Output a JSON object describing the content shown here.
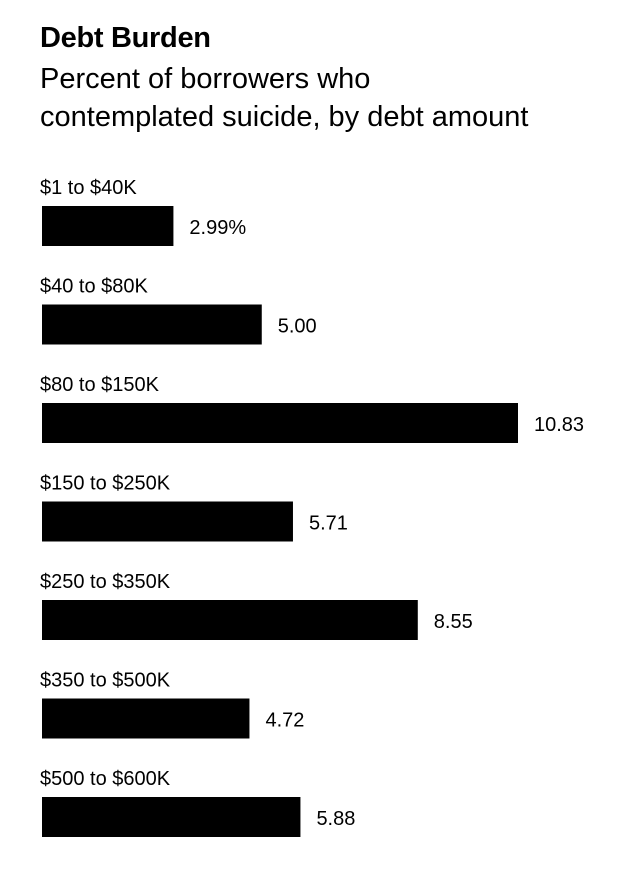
{
  "chart_data": {
    "type": "bar",
    "orientation": "horizontal",
    "title": "Debt Burden",
    "subtitle_lines": [
      "Percent of borrowers who",
      "contemplated suicide, by debt amount"
    ],
    "categories": [
      "$1 to $40K",
      "$40 to $80K",
      "$80 to $150K",
      "$150 to $250K",
      "$250 to $350K",
      "$350 to $500K",
      "$500 to $600K"
    ],
    "values": [
      2.99,
      5.0,
      10.83,
      5.71,
      8.55,
      4.72,
      5.88
    ],
    "value_labels": [
      "2.99%",
      "5.00",
      "10.83",
      "5.71",
      "8.55",
      "4.72",
      "5.88"
    ],
    "xlim": [
      0,
      10.83
    ],
    "grid": false,
    "bar_color": "#000000"
  }
}
